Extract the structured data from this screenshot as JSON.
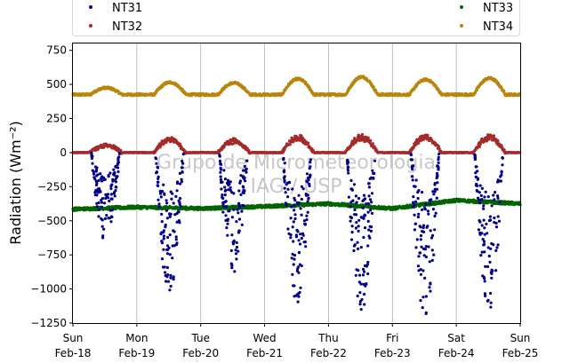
{
  "chart_data": {
    "type": "scatter",
    "title": "",
    "ylabel": "Radiation",
    "ylabel_math": "(Wm⁻²)",
    "ylim": [
      -1250,
      800
    ],
    "yticks": [
      {
        "value": 750,
        "label": "750"
      },
      {
        "value": 500,
        "label": "500"
      },
      {
        "value": 250,
        "label": "250"
      },
      {
        "value": 0,
        "label": "0"
      },
      {
        "value": -250,
        "label": "−250"
      },
      {
        "value": -500,
        "label": "−500"
      },
      {
        "value": -750,
        "label": "−750"
      },
      {
        "value": -1000,
        "label": "−1000"
      },
      {
        "value": -1250,
        "label": "−1250"
      }
    ],
    "xlim": [
      "2018-02-18",
      "2018-02-25"
    ],
    "xticks": [
      {
        "day": "Sun",
        "date": "Feb-18"
      },
      {
        "day": "Mon",
        "date": "Feb-19"
      },
      {
        "day": "Tue",
        "date": "Feb-20"
      },
      {
        "day": "Wed",
        "date": "Feb-21"
      },
      {
        "day": "Thu",
        "date": "Feb-22"
      },
      {
        "day": "Fri",
        "date": "Feb-23"
      },
      {
        "day": "Sat",
        "date": "Feb-24"
      },
      {
        "day": "Sun",
        "date": "Feb-25"
      }
    ],
    "grid": "vertical",
    "legend_placement": "top",
    "watermark": [
      "Grupo de Micrometeorologia",
      "IAG / USP"
    ],
    "series": [
      {
        "name": "NT31",
        "color": "#00008b",
        "pattern": "daytime negative dips",
        "days": [
          {
            "date": "2018-02-18",
            "min": -660
          },
          {
            "date": "2018-02-19",
            "min": -1050
          },
          {
            "date": "2018-02-20",
            "min": -880
          },
          {
            "date": "2018-02-21",
            "min": -1100
          },
          {
            "date": "2018-02-22",
            "min": -1180
          },
          {
            "date": "2018-02-23",
            "min": -1200
          },
          {
            "date": "2018-02-24",
            "min": -1160
          }
        ]
      },
      {
        "name": "NT32",
        "color": "#a52a2a",
        "pattern": "near zero at night, daytime bumps",
        "days": [
          {
            "date": "2018-02-18",
            "max": 60
          },
          {
            "date": "2018-02-19",
            "max": 110
          },
          {
            "date": "2018-02-20",
            "max": 100
          },
          {
            "date": "2018-02-21",
            "max": 125
          },
          {
            "date": "2018-02-22",
            "max": 130
          },
          {
            "date": "2018-02-23",
            "max": 135
          },
          {
            "date": "2018-02-24",
            "max": 130
          }
        ]
      },
      {
        "name": "NT33",
        "color": "#006400",
        "pattern": "slowly varying, around -400",
        "points": [
          {
            "x": "2018-02-18",
            "y": -415
          },
          {
            "x": "2018-02-19",
            "y": -400
          },
          {
            "x": "2018-02-20",
            "y": -410
          },
          {
            "x": "2018-02-21",
            "y": -395
          },
          {
            "x": "2018-02-22",
            "y": -375
          },
          {
            "x": "2018-02-23",
            "y": -410
          },
          {
            "x": "2018-02-24",
            "y": -350
          },
          {
            "x": "2018-02-25",
            "y": -375
          }
        ]
      },
      {
        "name": "NT34",
        "color": "#b8860b",
        "pattern": "baseline about 425 with daytime peaks",
        "days": [
          {
            "date": "2018-02-18",
            "max": 475
          },
          {
            "date": "2018-02-19",
            "max": 515
          },
          {
            "date": "2018-02-20",
            "max": 510
          },
          {
            "date": "2018-02-21",
            "max": 540
          },
          {
            "date": "2018-02-22",
            "max": 555
          },
          {
            "date": "2018-02-23",
            "max": 535
          },
          {
            "date": "2018-02-24",
            "max": 545
          }
        ]
      }
    ]
  }
}
